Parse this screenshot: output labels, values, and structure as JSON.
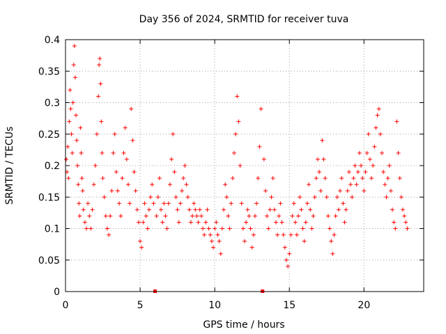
{
  "chart_data": {
    "type": "scatter",
    "title": "Day 356 of 2024, SRMTID for receiver tuva",
    "xlabel": "GPS time / hours",
    "ylabel": "SRMTID / TECUs",
    "xlim": [
      0,
      24
    ],
    "ylim": [
      0,
      0.4
    ],
    "xticks": [
      "0",
      "5",
      "10",
      "15",
      "20"
    ],
    "yticks": [
      "0",
      "0.05",
      "0.1",
      "0.15",
      "0.2",
      "0.25",
      "0.3",
      "0.35",
      "0.4"
    ],
    "grid": true,
    "marker": "plus",
    "color": "#ff0000",
    "data_gaps_x": [
      6.0,
      13.2
    ],
    "series": [
      {
        "points": [
          [
            0.05,
            0.21
          ],
          [
            0.1,
            0.19
          ],
          [
            0.15,
            0.23
          ],
          [
            0.2,
            0.18
          ],
          [
            0.25,
            0.27
          ],
          [
            0.3,
            0.32
          ],
          [
            0.35,
            0.29
          ],
          [
            0.4,
            0.25
          ],
          [
            0.45,
            0.22
          ],
          [
            0.5,
            0.3
          ],
          [
            0.55,
            0.36
          ],
          [
            0.6,
            0.39
          ],
          [
            0.65,
            0.34
          ],
          [
            0.7,
            0.28
          ],
          [
            0.75,
            0.24
          ],
          [
            0.8,
            0.2
          ],
          [
            0.85,
            0.17
          ],
          [
            0.9,
            0.14
          ],
          [
            0.95,
            0.12
          ],
          [
            1.0,
            0.26
          ],
          [
            1.05,
            0.22
          ],
          [
            1.1,
            0.18
          ],
          [
            1.15,
            0.16
          ],
          [
            1.2,
            0.13
          ],
          [
            1.3,
            0.11
          ],
          [
            1.4,
            0.1
          ],
          [
            1.5,
            0.14
          ],
          [
            1.6,
            0.12
          ],
          [
            1.7,
            0.1
          ],
          [
            1.8,
            0.13
          ],
          [
            1.9,
            0.17
          ],
          [
            2.0,
            0.2
          ],
          [
            2.1,
            0.25
          ],
          [
            2.2,
            0.31
          ],
          [
            2.25,
            0.36
          ],
          [
            2.3,
            0.37
          ],
          [
            2.35,
            0.33
          ],
          [
            2.4,
            0.27
          ],
          [
            2.45,
            0.22
          ],
          [
            2.5,
            0.18
          ],
          [
            2.6,
            0.15
          ],
          [
            2.7,
            0.12
          ],
          [
            2.8,
            0.1
          ],
          [
            2.9,
            0.09
          ],
          [
            3.0,
            0.12
          ],
          [
            3.1,
            0.16
          ],
          [
            3.2,
            0.22
          ],
          [
            3.3,
            0.25
          ],
          [
            3.4,
            0.19
          ],
          [
            3.5,
            0.16
          ],
          [
            3.6,
            0.14
          ],
          [
            3.7,
            0.12
          ],
          [
            3.8,
            0.18
          ],
          [
            3.9,
            0.22
          ],
          [
            4.0,
            0.26
          ],
          [
            4.1,
            0.21
          ],
          [
            4.2,
            0.17
          ],
          [
            4.3,
            0.14
          ],
          [
            4.4,
            0.29
          ],
          [
            4.5,
            0.24
          ],
          [
            4.6,
            0.19
          ],
          [
            4.7,
            0.16
          ],
          [
            4.8,
            0.13
          ],
          [
            4.9,
            0.11
          ],
          [
            5.0,
            0.08
          ],
          [
            5.1,
            0.07
          ],
          [
            5.2,
            0.11
          ],
          [
            5.3,
            0.14
          ],
          [
            5.4,
            0.12
          ],
          [
            5.5,
            0.1
          ],
          [
            5.6,
            0.13
          ],
          [
            5.7,
            0.15
          ],
          [
            5.8,
            0.17
          ],
          [
            5.9,
            0.14
          ],
          [
            6.1,
            0.12
          ],
          [
            6.2,
            0.15
          ],
          [
            6.3,
            0.18
          ],
          [
            6.4,
            0.13
          ],
          [
            6.5,
            0.11
          ],
          [
            6.6,
            0.14
          ],
          [
            6.7,
            0.12
          ],
          [
            6.8,
            0.1
          ],
          [
            6.9,
            0.14
          ],
          [
            7.0,
            0.17
          ],
          [
            7.1,
            0.21
          ],
          [
            7.2,
            0.25
          ],
          [
            7.3,
            0.19
          ],
          [
            7.4,
            0.15
          ],
          [
            7.5,
            0.13
          ],
          [
            7.6,
            0.11
          ],
          [
            7.7,
            0.14
          ],
          [
            7.8,
            0.16
          ],
          [
            7.9,
            0.18
          ],
          [
            8.0,
            0.2
          ],
          [
            8.1,
            0.17
          ],
          [
            8.2,
            0.15
          ],
          [
            8.3,
            0.13
          ],
          [
            8.4,
            0.11
          ],
          [
            8.5,
            0.12
          ],
          [
            8.6,
            0.14
          ],
          [
            8.7,
            0.13
          ],
          [
            8.8,
            0.12
          ],
          [
            8.9,
            0.11
          ],
          [
            9.0,
            0.13
          ],
          [
            9.1,
            0.12
          ],
          [
            9.2,
            0.1
          ],
          [
            9.3,
            0.09
          ],
          [
            9.4,
            0.11
          ],
          [
            9.5,
            0.13
          ],
          [
            9.6,
            0.1
          ],
          [
            9.7,
            0.09
          ],
          [
            9.8,
            0.08
          ],
          [
            9.9,
            0.07
          ],
          [
            10.0,
            0.1
          ],
          [
            10.1,
            0.11
          ],
          [
            10.2,
            0.09
          ],
          [
            10.3,
            0.08
          ],
          [
            10.4,
            0.06
          ],
          [
            10.5,
            0.1
          ],
          [
            10.6,
            0.13
          ],
          [
            10.7,
            0.17
          ],
          [
            10.8,
            0.15
          ],
          [
            10.9,
            0.12
          ],
          [
            11.0,
            0.1
          ],
          [
            11.1,
            0.14
          ],
          [
            11.2,
            0.18
          ],
          [
            11.3,
            0.22
          ],
          [
            11.4,
            0.25
          ],
          [
            11.5,
            0.31
          ],
          [
            11.6,
            0.27
          ],
          [
            11.7,
            0.2
          ],
          [
            11.8,
            0.14
          ],
          [
            11.9,
            0.1
          ],
          [
            12.0,
            0.08
          ],
          [
            12.1,
            0.11
          ],
          [
            12.2,
            0.13
          ],
          [
            12.3,
            0.12
          ],
          [
            12.4,
            0.1
          ],
          [
            12.5,
            0.07
          ],
          [
            12.6,
            0.09
          ],
          [
            12.7,
            0.12
          ],
          [
            12.8,
            0.14
          ],
          [
            12.9,
            0.18
          ],
          [
            13.0,
            0.23
          ],
          [
            13.1,
            0.29
          ],
          [
            13.3,
            0.21
          ],
          [
            13.4,
            0.16
          ],
          [
            13.5,
            0.12
          ],
          [
            13.6,
            0.1
          ],
          [
            13.7,
            0.13
          ],
          [
            13.8,
            0.15
          ],
          [
            13.9,
            0.18
          ],
          [
            14.0,
            0.13
          ],
          [
            14.1,
            0.11
          ],
          [
            14.2,
            0.09
          ],
          [
            14.3,
            0.12
          ],
          [
            14.4,
            0.14
          ],
          [
            14.5,
            0.11
          ],
          [
            14.6,
            0.09
          ],
          [
            14.7,
            0.07
          ],
          [
            14.8,
            0.05
          ],
          [
            14.9,
            0.04
          ],
          [
            15.0,
            0.06
          ],
          [
            15.1,
            0.09
          ],
          [
            15.2,
            0.12
          ],
          [
            15.3,
            0.14
          ],
          [
            15.4,
            0.11
          ],
          [
            15.5,
            0.09
          ],
          [
            15.6,
            0.12
          ],
          [
            15.7,
            0.15
          ],
          [
            15.8,
            0.13
          ],
          [
            15.9,
            0.1
          ],
          [
            16.0,
            0.08
          ],
          [
            16.1,
            0.11
          ],
          [
            16.2,
            0.14
          ],
          [
            16.3,
            0.17
          ],
          [
            16.4,
            0.13
          ],
          [
            16.5,
            0.1
          ],
          [
            16.6,
            0.12
          ],
          [
            16.7,
            0.15
          ],
          [
            16.8,
            0.18
          ],
          [
            16.9,
            0.21
          ],
          [
            17.0,
            0.19
          ],
          [
            17.1,
            0.16
          ],
          [
            17.2,
            0.24
          ],
          [
            17.3,
            0.21
          ],
          [
            17.4,
            0.18
          ],
          [
            17.5,
            0.15
          ],
          [
            17.6,
            0.12
          ],
          [
            17.7,
            0.1
          ],
          [
            17.8,
            0.08
          ],
          [
            17.9,
            0.06
          ],
          [
            18.0,
            0.09
          ],
          [
            18.1,
            0.12
          ],
          [
            18.2,
            0.15
          ],
          [
            18.3,
            0.13
          ],
          [
            18.4,
            0.16
          ],
          [
            18.5,
            0.18
          ],
          [
            18.6,
            0.14
          ],
          [
            18.7,
            0.11
          ],
          [
            18.8,
            0.13
          ],
          [
            18.9,
            0.16
          ],
          [
            19.0,
            0.19
          ],
          [
            19.1,
            0.17
          ],
          [
            19.2,
            0.15
          ],
          [
            19.3,
            0.18
          ],
          [
            19.4,
            0.2
          ],
          [
            19.5,
            0.17
          ],
          [
            19.6,
            0.19
          ],
          [
            19.7,
            0.22
          ],
          [
            19.8,
            0.2
          ],
          [
            19.9,
            0.18
          ],
          [
            20.0,
            0.16
          ],
          [
            20.1,
            0.19
          ],
          [
            20.2,
            0.22
          ],
          [
            20.3,
            0.25
          ],
          [
            20.4,
            0.21
          ],
          [
            20.5,
            0.18
          ],
          [
            20.6,
            0.2
          ],
          [
            20.7,
            0.23
          ],
          [
            20.8,
            0.26
          ],
          [
            20.9,
            0.28
          ],
          [
            21.0,
            0.29
          ],
          [
            21.1,
            0.25
          ],
          [
            21.2,
            0.22
          ],
          [
            21.3,
            0.19
          ],
          [
            21.4,
            0.17
          ],
          [
            21.5,
            0.15
          ],
          [
            21.6,
            0.18
          ],
          [
            21.7,
            0.2
          ],
          [
            21.8,
            0.16
          ],
          [
            21.9,
            0.13
          ],
          [
            22.0,
            0.11
          ],
          [
            22.1,
            0.1
          ],
          [
            22.2,
            0.27
          ],
          [
            22.3,
            0.22
          ],
          [
            22.4,
            0.18
          ],
          [
            22.5,
            0.15
          ],
          [
            22.6,
            0.13
          ],
          [
            22.7,
            0.12
          ],
          [
            22.8,
            0.11
          ],
          [
            22.9,
            0.1
          ]
        ]
      }
    ]
  }
}
